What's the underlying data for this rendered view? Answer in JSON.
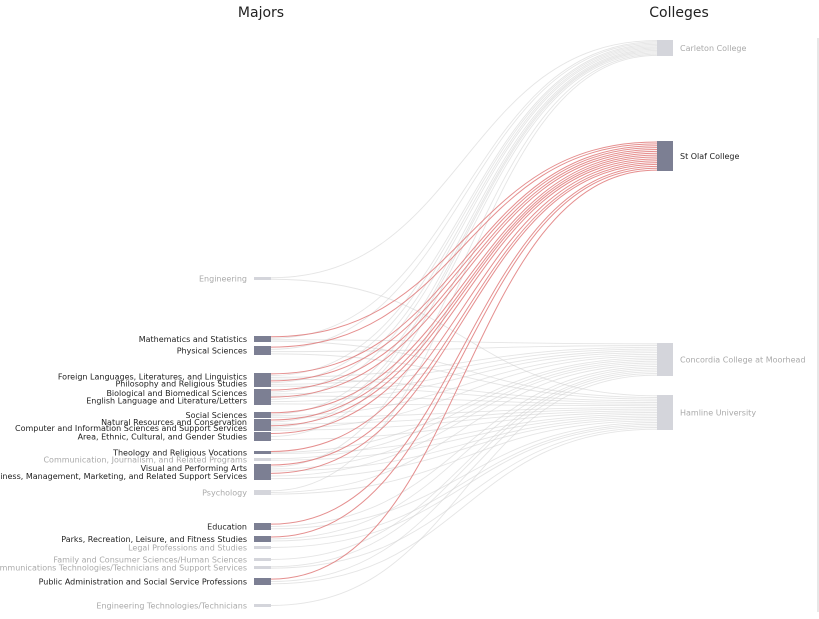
{
  "chart_data": {
    "type": "sankey",
    "left_header": "Majors",
    "right_header": "Colleges",
    "highlighted_college": "St Olaf College",
    "colors": {
      "active_node": "#7c7f93",
      "inactive_node": "#d4d5db",
      "active_link": "#e07b7b",
      "inactive_link": "#cfcfcf",
      "active_text": "#222222",
      "inactive_text": "#aaaaaa"
    },
    "majors": [
      {
        "name": "Engineering",
        "active": false
      },
      {
        "name": "Mathematics and Statistics",
        "active": true
      },
      {
        "name": "Physical Sciences",
        "active": true
      },
      {
        "name": "Foreign Languages, Literatures, and Linguistics",
        "active": true
      },
      {
        "name": "Philosophy and Religious Studies",
        "active": true
      },
      {
        "name": "Biological and Biomedical Sciences",
        "active": true
      },
      {
        "name": "English Language and Literature/Letters",
        "active": true
      },
      {
        "name": "Social Sciences",
        "active": true
      },
      {
        "name": "Natural Resources and Conservation",
        "active": true
      },
      {
        "name": "Computer and Information Sciences and Support Services",
        "active": true
      },
      {
        "name": "Area, Ethnic, Cultural, and Gender Studies",
        "active": true
      },
      {
        "name": "Theology and Religious Vocations",
        "active": true
      },
      {
        "name": "Communication, Journalism, and Related Programs",
        "active": false
      },
      {
        "name": "Visual and Performing Arts",
        "active": true
      },
      {
        "name": "Business, Management, Marketing, and Related Support Services",
        "active": true
      },
      {
        "name": "Psychology",
        "active": false
      },
      {
        "name": "Education",
        "active": true
      },
      {
        "name": "Parks, Recreation, Leisure, and Fitness Studies",
        "active": true
      },
      {
        "name": "Legal Professions and Studies",
        "active": false
      },
      {
        "name": "Family and Consumer Sciences/Human Sciences",
        "active": false
      },
      {
        "name": "Communications Technologies/Technicians and Support Services",
        "active": false
      },
      {
        "name": "Public Administration and Social Service Professions",
        "active": true
      },
      {
        "name": "Engineering Technologies/Technicians",
        "active": false
      }
    ],
    "colleges": [
      {
        "name": "Carleton College",
        "active": false
      },
      {
        "name": "St Olaf College",
        "active": true
      },
      {
        "name": "Concordia College at Moorhead",
        "active": false
      },
      {
        "name": "Hamline University",
        "active": false
      }
    ],
    "links": [
      {
        "source": "Engineering",
        "target": "Carleton College",
        "active": false
      },
      {
        "source": "Engineering",
        "target": "Hamline University",
        "active": false
      },
      {
        "source": "Mathematics and Statistics",
        "target": "St Olaf College",
        "active": true
      },
      {
        "source": "Mathematics and Statistics",
        "target": "Carleton College",
        "active": false
      },
      {
        "source": "Mathematics and Statistics",
        "target": "Concordia College at Moorhead",
        "active": false
      },
      {
        "source": "Mathematics and Statistics",
        "target": "Hamline University",
        "active": false
      },
      {
        "source": "Physical Sciences",
        "target": "St Olaf College",
        "active": true
      },
      {
        "source": "Physical Sciences",
        "target": "Carleton College",
        "active": false
      },
      {
        "source": "Physical Sciences",
        "target": "Concordia College at Moorhead",
        "active": false
      },
      {
        "source": "Physical Sciences",
        "target": "Hamline University",
        "active": false
      },
      {
        "source": "Foreign Languages, Literatures, and Linguistics",
        "target": "St Olaf College",
        "active": true
      },
      {
        "source": "Foreign Languages, Literatures, and Linguistics",
        "target": "Carleton College",
        "active": false
      },
      {
        "source": "Foreign Languages, Literatures, and Linguistics",
        "target": "Concordia College at Moorhead",
        "active": false
      },
      {
        "source": "Foreign Languages, Literatures, and Linguistics",
        "target": "Hamline University",
        "active": false
      },
      {
        "source": "Philosophy and Religious Studies",
        "target": "St Olaf College",
        "active": true
      },
      {
        "source": "Philosophy and Religious Studies",
        "target": "Carleton College",
        "active": false
      },
      {
        "source": "Philosophy and Religious Studies",
        "target": "Concordia College at Moorhead",
        "active": false
      },
      {
        "source": "Philosophy and Religious Studies",
        "target": "Hamline University",
        "active": false
      },
      {
        "source": "Biological and Biomedical Sciences",
        "target": "St Olaf College",
        "active": true
      },
      {
        "source": "Biological and Biomedical Sciences",
        "target": "Carleton College",
        "active": false
      },
      {
        "source": "Biological and Biomedical Sciences",
        "target": "Concordia College at Moorhead",
        "active": false
      },
      {
        "source": "Biological and Biomedical Sciences",
        "target": "Hamline University",
        "active": false
      },
      {
        "source": "English Language and Literature/Letters",
        "target": "St Olaf College",
        "active": true
      },
      {
        "source": "English Language and Literature/Letters",
        "target": "Carleton College",
        "active": false
      },
      {
        "source": "English Language and Literature/Letters",
        "target": "Concordia College at Moorhead",
        "active": false
      },
      {
        "source": "English Language and Literature/Letters",
        "target": "Hamline University",
        "active": false
      },
      {
        "source": "Social Sciences",
        "target": "St Olaf College",
        "active": true
      },
      {
        "source": "Social Sciences",
        "target": "Carleton College",
        "active": false
      },
      {
        "source": "Social Sciences",
        "target": "Concordia College at Moorhead",
        "active": false
      },
      {
        "source": "Social Sciences",
        "target": "Hamline University",
        "active": false
      },
      {
        "source": "Natural Resources and Conservation",
        "target": "St Olaf College",
        "active": true
      },
      {
        "source": "Natural Resources and Conservation",
        "target": "Carleton College",
        "active": false
      },
      {
        "source": "Natural Resources and Conservation",
        "target": "Hamline University",
        "active": false
      },
      {
        "source": "Computer and Information Sciences and Support Services",
        "target": "St Olaf College",
        "active": true
      },
      {
        "source": "Computer and Information Sciences and Support Services",
        "target": "Carleton College",
        "active": false
      },
      {
        "source": "Computer and Information Sciences and Support Services",
        "target": "Concordia College at Moorhead",
        "active": false
      },
      {
        "source": "Computer and Information Sciences and Support Services",
        "target": "Hamline University",
        "active": false
      },
      {
        "source": "Area, Ethnic, Cultural, and Gender Studies",
        "target": "St Olaf College",
        "active": true
      },
      {
        "source": "Area, Ethnic, Cultural, and Gender Studies",
        "target": "Carleton College",
        "active": false
      },
      {
        "source": "Area, Ethnic, Cultural, and Gender Studies",
        "target": "Hamline University",
        "active": false
      },
      {
        "source": "Theology and Religious Vocations",
        "target": "St Olaf College",
        "active": true
      },
      {
        "source": "Theology and Religious Vocations",
        "target": "Concordia College at Moorhead",
        "active": false
      },
      {
        "source": "Theology and Religious Vocations",
        "target": "Hamline University",
        "active": false
      },
      {
        "source": "Communication, Journalism, and Related Programs",
        "target": "Concordia College at Moorhead",
        "active": false
      },
      {
        "source": "Communication, Journalism, and Related Programs",
        "target": "Hamline University",
        "active": false
      },
      {
        "source": "Visual and Performing Arts",
        "target": "St Olaf College",
        "active": true
      },
      {
        "source": "Visual and Performing Arts",
        "target": "Carleton College",
        "active": false
      },
      {
        "source": "Visual and Performing Arts",
        "target": "Concordia College at Moorhead",
        "active": false
      },
      {
        "source": "Visual and Performing Arts",
        "target": "Hamline University",
        "active": false
      },
      {
        "source": "Business, Management, Marketing, and Related Support Services",
        "target": "St Olaf College",
        "active": true
      },
      {
        "source": "Business, Management, Marketing, and Related Support Services",
        "target": "Concordia College at Moorhead",
        "active": false
      },
      {
        "source": "Business, Management, Marketing, and Related Support Services",
        "target": "Hamline University",
        "active": false
      },
      {
        "source": "Psychology",
        "target": "Carleton College",
        "active": false
      },
      {
        "source": "Psychology",
        "target": "Concordia College at Moorhead",
        "active": false
      },
      {
        "source": "Psychology",
        "target": "Hamline University",
        "active": false
      },
      {
        "source": "Education",
        "target": "St Olaf College",
        "active": true
      },
      {
        "source": "Education",
        "target": "Concordia College at Moorhead",
        "active": false
      },
      {
        "source": "Education",
        "target": "Hamline University",
        "active": false
      },
      {
        "source": "Parks, Recreation, Leisure, and Fitness Studies",
        "target": "St Olaf College",
        "active": true
      },
      {
        "source": "Parks, Recreation, Leisure, and Fitness Studies",
        "target": "Concordia College at Moorhead",
        "active": false
      },
      {
        "source": "Parks, Recreation, Leisure, and Fitness Studies",
        "target": "Hamline University",
        "active": false
      },
      {
        "source": "Legal Professions and Studies",
        "target": "Hamline University",
        "active": false
      },
      {
        "source": "Family and Consumer Sciences/Human Sciences",
        "target": "Concordia College at Moorhead",
        "active": false
      },
      {
        "source": "Communications Technologies/Technicians and Support Services",
        "target": "Concordia College at Moorhead",
        "active": false
      },
      {
        "source": "Communications Technologies/Technicians and Support Services",
        "target": "Hamline University",
        "active": false
      },
      {
        "source": "Public Administration and Social Service Professions",
        "target": "St Olaf College",
        "active": true
      },
      {
        "source": "Public Administration and Social Service Professions",
        "target": "Concordia College at Moorhead",
        "active": false
      },
      {
        "source": "Public Administration and Social Service Professions",
        "target": "Hamline University",
        "active": false
      },
      {
        "source": "Engineering Technologies/Technicians",
        "target": "Concordia College at Moorhead",
        "active": false
      }
    ]
  }
}
